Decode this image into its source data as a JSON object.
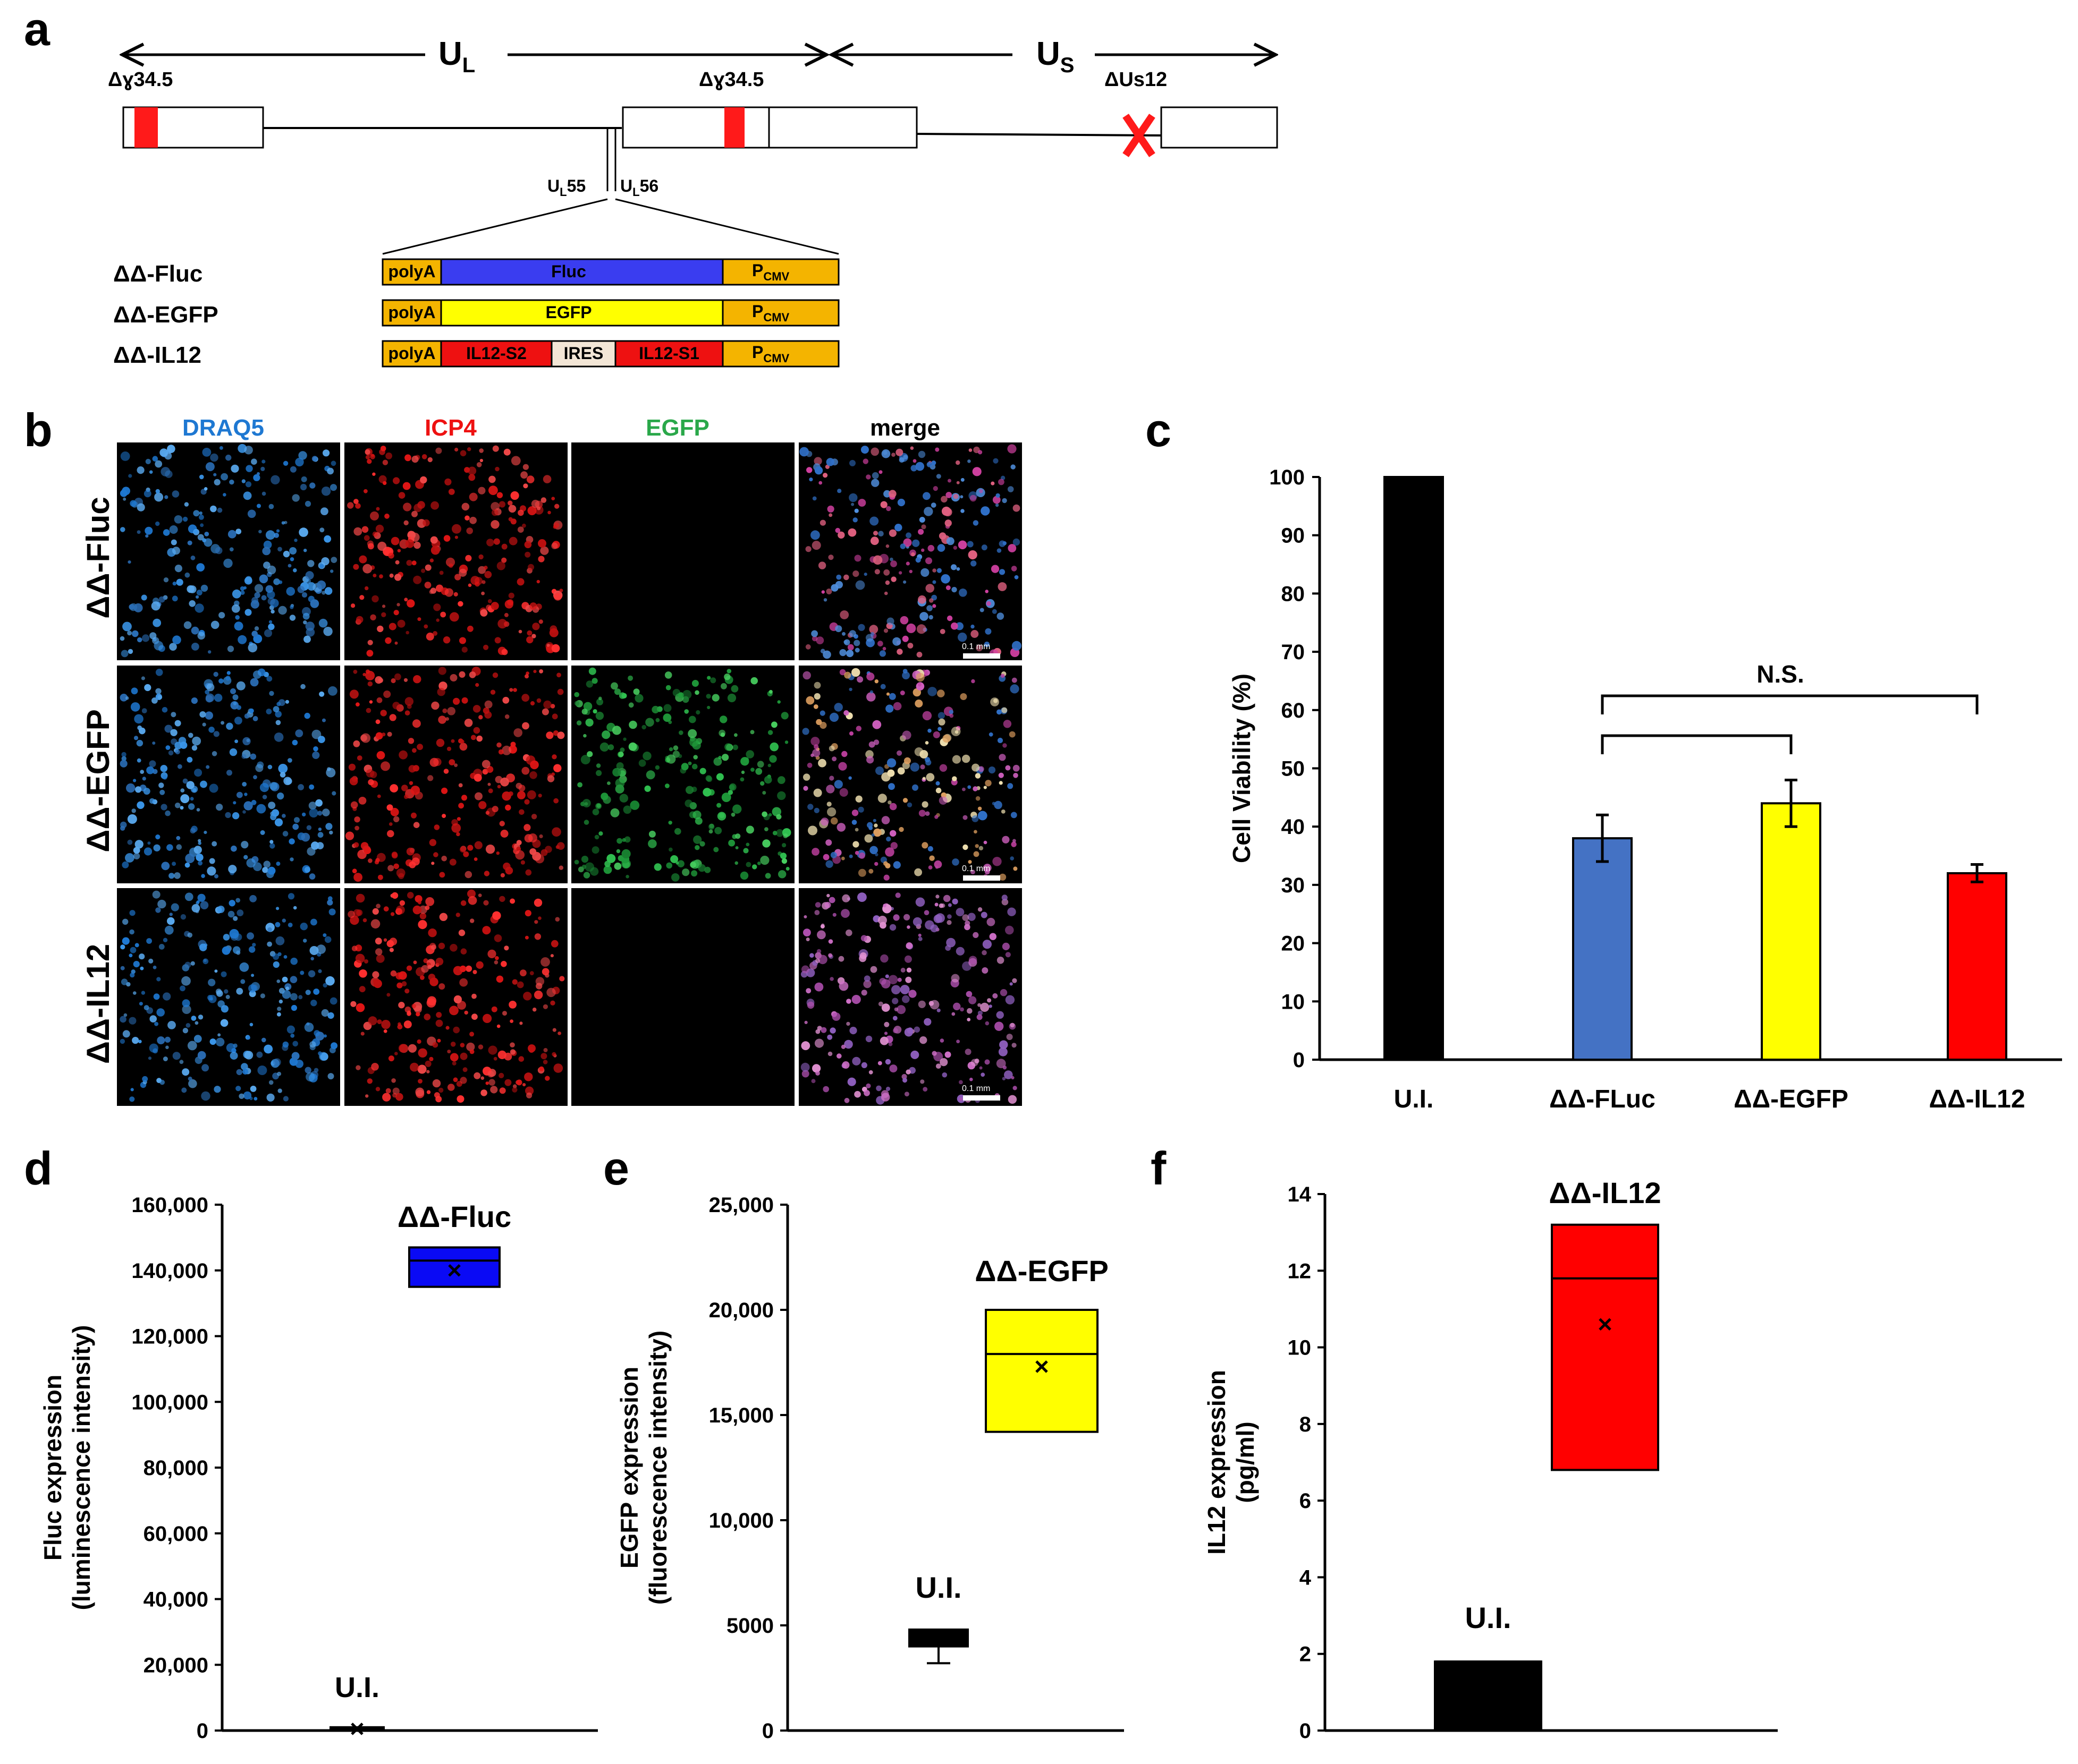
{
  "panels": {
    "a": "a",
    "b": "b",
    "c": "c",
    "d": "d",
    "e": "e",
    "f": "f"
  },
  "panel_a": {
    "regions": [
      {
        "name": "U",
        "sub": "L"
      },
      {
        "name": "U",
        "sub": "S"
      }
    ],
    "deletions": [
      "Δɣ34.5",
      "Δɣ34.5",
      "ΔUs12"
    ],
    "insertion_site": [
      {
        "name": "U",
        "sub": "L",
        "suffix": "55"
      },
      {
        "name": "U",
        "sub": "L",
        "suffix": "56"
      }
    ],
    "constructs": [
      {
        "name": "ΔΔ-Fluc",
        "parts": [
          "polyA",
          "Fluc"
        ],
        "promoter": {
          "name": "P",
          "sub": "CMV"
        }
      },
      {
        "name": "ΔΔ-EGFP",
        "parts": [
          "polyA",
          "EGFP"
        ],
        "promoter": {
          "name": "P",
          "sub": "CMV"
        }
      },
      {
        "name": "ΔΔ-IL12",
        "parts": [
          "polyA",
          "IL12-S2",
          "IRES",
          "IL12-S1"
        ],
        "promoter": {
          "name": "P",
          "sub": "CMV"
        }
      }
    ],
    "colors": {
      "promoter": "#F4B400",
      "fluc": "#3A3DF0",
      "egfp": "#FFFF00",
      "il12": "#EE1111",
      "ires": "#F3E6D6",
      "deletion": "#FF1A1A"
    }
  },
  "panel_b": {
    "columns": [
      {
        "label": "DRAQ5",
        "color": "#1E78D2"
      },
      {
        "label": "ICP4",
        "color": "#EE1111"
      },
      {
        "label": "EGFP",
        "color": "#2AA84A"
      },
      {
        "label": "merge",
        "color": "#000000"
      }
    ],
    "rows": [
      "ΔΔ-Fluc",
      "ΔΔ-EGFP",
      "ΔΔ-IL12"
    ],
    "scale_bar": "0.1 mm"
  },
  "chart_data": [
    {
      "panel": "c",
      "type": "bar",
      "categories": [
        "U.I.",
        "ΔΔ-FLuc",
        "ΔΔ-EGFP",
        "ΔΔ-IL12"
      ],
      "values": [
        100,
        38,
        44,
        32
      ],
      "errors": [
        0,
        4,
        4,
        1.5
      ],
      "colors": [
        "#000000",
        "#4472C4",
        "#FFFF00",
        "#FF0000"
      ],
      "ylabel": "Cell Viability (%)",
      "ylim": [
        0,
        100
      ],
      "yticks": [
        0,
        10,
        20,
        30,
        40,
        50,
        60,
        70,
        80,
        90,
        100
      ],
      "annotation": "N.S."
    },
    {
      "panel": "d",
      "type": "box",
      "ylabel": [
        "Fluc expression",
        "(luminescence intensity)"
      ],
      "ylim": [
        0,
        160000
      ],
      "yticks": [
        "0",
        "20,000",
        "40,000",
        "60,000",
        "80,000",
        "100,000",
        "120,000",
        "140,000",
        "160,000"
      ],
      "boxes": [
        {
          "label": "U.I.",
          "q1": 0,
          "median": 500,
          "q3": 1000,
          "mean": 500,
          "color": "#000000"
        },
        {
          "label": "ΔΔ-Fluc",
          "q1": 135000,
          "median": 143000,
          "q3": 147000,
          "mean": 140000,
          "color": "#0A0AF5"
        }
      ]
    },
    {
      "panel": "e",
      "type": "box",
      "ylabel": [
        "EGFP expression",
        "(fluorescence intensity)"
      ],
      "ylim": [
        0,
        25000
      ],
      "yticks": [
        "0",
        "5000",
        "10,000",
        "15,000",
        "20,000",
        "25,000"
      ],
      "boxes": [
        {
          "label": "U.I.",
          "q1": 4000,
          "median": 4200,
          "q3": 4800,
          "whisker_low": 3200,
          "color": "#000000"
        },
        {
          "label": "ΔΔ-EGFP",
          "q1": 14200,
          "median": 17900,
          "q3": 20000,
          "mean": 17300,
          "color": "#FFFF00"
        }
      ]
    },
    {
      "panel": "f",
      "type": "box",
      "ylabel": [
        "IL12 expression",
        "(pg/ml)"
      ],
      "ylim": [
        0,
        14
      ],
      "yticks": [
        "0",
        "2",
        "4",
        "6",
        "8",
        "10",
        "12",
        "14"
      ],
      "boxes": [
        {
          "label": "U.I.",
          "q1": 0,
          "median": 1.8,
          "q3": 1.8,
          "color": "#000000"
        },
        {
          "label": "ΔΔ-IL12",
          "q1": 6.8,
          "median": 11.8,
          "q3": 13.2,
          "mean": 10.6,
          "color": "#FF0000"
        }
      ]
    }
  ]
}
